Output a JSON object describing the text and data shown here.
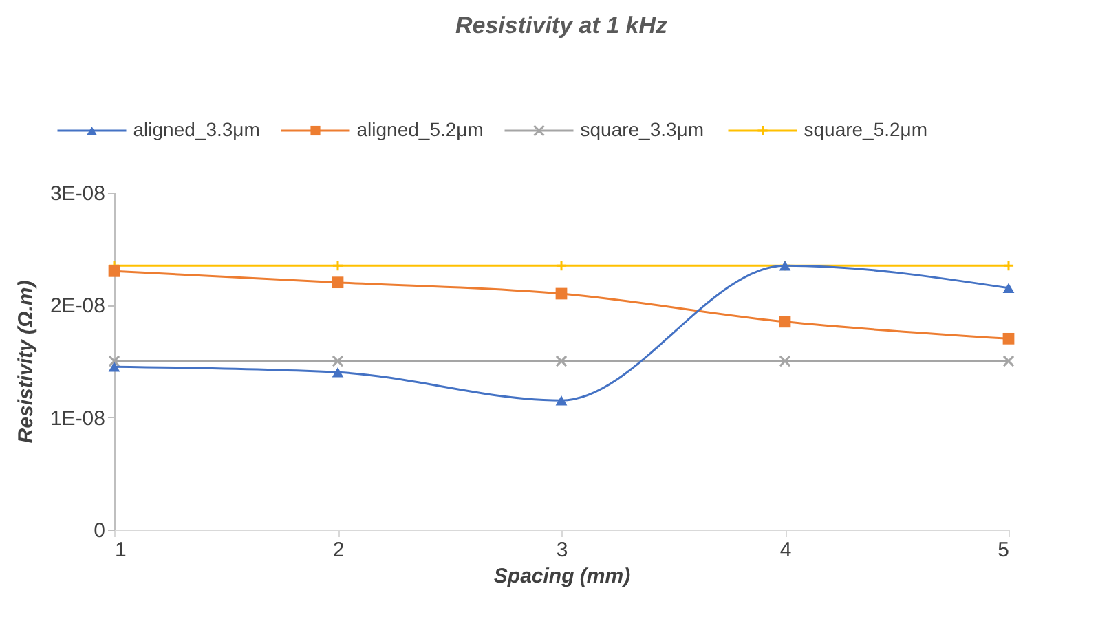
{
  "chart_data": {
    "type": "line",
    "title": "Resistivity at 1 kHz",
    "xlabel": "Spacing (mm)",
    "ylabel": "Resistivity (Ω.m)",
    "x": [
      1,
      2,
      3,
      4,
      5
    ],
    "xlim": [
      1,
      5
    ],
    "xticks": [
      1,
      2,
      3,
      4,
      5
    ],
    "ylim": [
      0,
      3e-08
    ],
    "yticks": [
      {
        "value": 0,
        "label": "0"
      },
      {
        "value": 1e-08,
        "label": "1E-08"
      },
      {
        "value": 2e-08,
        "label": "2E-08"
      },
      {
        "value": 3e-08,
        "label": "3E-08"
      }
    ],
    "grid": false,
    "legend": "top",
    "line_style": "solid",
    "series": [
      {
        "name": "aligned_3.3μm",
        "color": "#4472c4",
        "marker": "triangle",
        "values": [
          1.45e-08,
          1.4e-08,
          1.15e-08,
          2.35e-08,
          2.15e-08
        ]
      },
      {
        "name": "aligned_5.2μm",
        "color": "#ed7d31",
        "marker": "square",
        "values": [
          2.3e-08,
          2.2e-08,
          2.1e-08,
          1.85e-08,
          1.7e-08
        ]
      },
      {
        "name": "square_3.3μm",
        "color": "#a5a5a5",
        "marker": "cross",
        "values": [
          1.5e-08,
          1.5e-08,
          1.5e-08,
          1.5e-08,
          1.5e-08
        ]
      },
      {
        "name": "square_5.2μm",
        "color": "#ffc000",
        "marker": "plus",
        "values": [
          2.35e-08,
          2.35e-08,
          2.35e-08,
          2.35e-08,
          2.35e-08
        ]
      }
    ]
  }
}
